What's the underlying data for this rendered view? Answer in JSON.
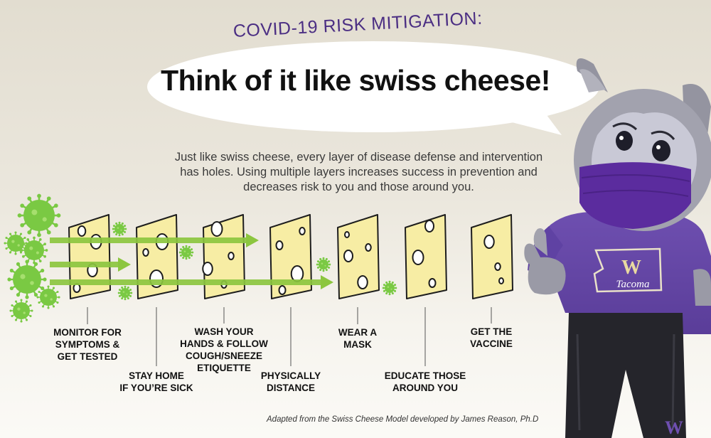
{
  "header": {
    "subtitle": "COVID-19 RISK MITIGATION:",
    "headline": "Think of it like swiss cheese!"
  },
  "intro": {
    "line1": "Just like swiss cheese, every layer of disease defense and intervention",
    "line2": "has holes. Using multiple layers increases success in prevention and",
    "line3": "decreases risk to you and those around you."
  },
  "layers": [
    {
      "lines": [
        "MONITOR FOR",
        "SYMPTOMS &",
        "GET TESTED"
      ]
    },
    {
      "lines": [
        "STAY HOME",
        "IF YOU’RE SICK"
      ]
    },
    {
      "lines": [
        "WASH YOUR",
        "HANDS & FOLLOW",
        "COUGH/SNEEZE",
        "ETIQUETTE"
      ]
    },
    {
      "lines": [
        "PHYSICALLY",
        "DISTANCE"
      ]
    },
    {
      "lines": [
        "WEAR A",
        "MASK"
      ]
    },
    {
      "lines": [
        "EDUCATE THOSE",
        "AROUND YOU"
      ]
    },
    {
      "lines": [
        "GET THE",
        "VACCINE"
      ]
    }
  ],
  "mascot": {
    "shirt_text": "Tacoma",
    "shirt_letter": "W",
    "shorts_letter": "W"
  },
  "credit": "Adapted from the Swiss Cheese Model developed by James Reason, Ph.D",
  "colors": {
    "purple": "#4b2e83",
    "cheese": "#f7eda4",
    "arrow": "#8cc63f",
    "virus": "#7ac943"
  }
}
